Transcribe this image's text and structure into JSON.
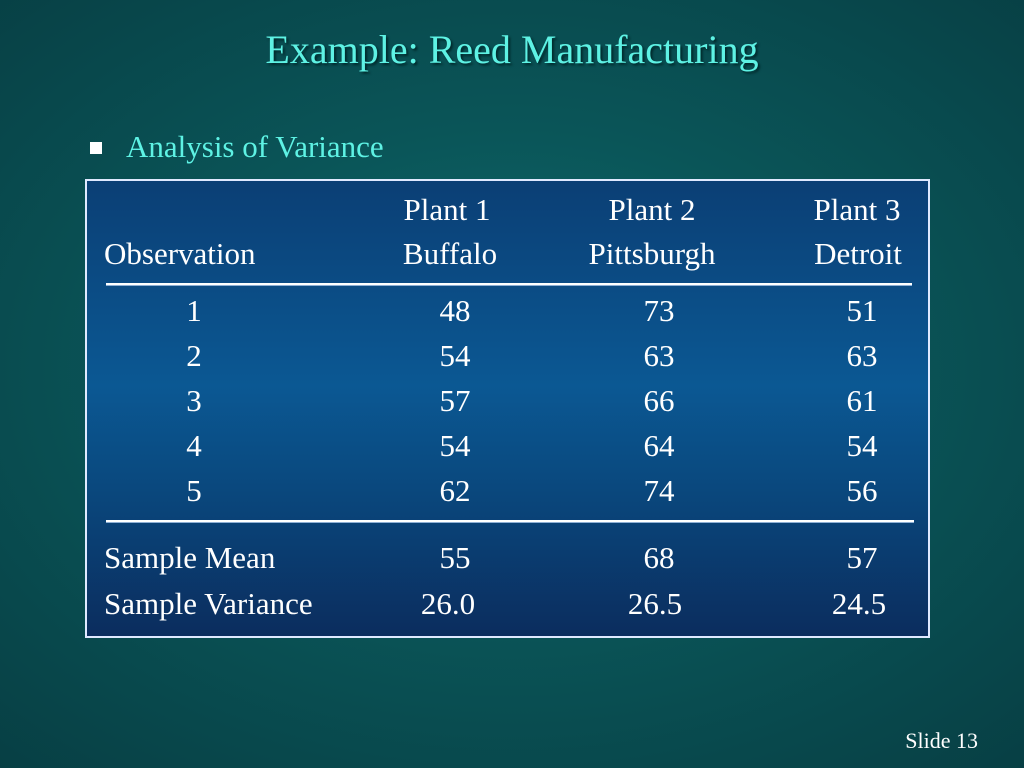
{
  "slide": {
    "title": "Example:  Reed Manufacturing",
    "bullet": "Analysis of Variance",
    "number": "Slide 13"
  },
  "table": {
    "header_row1": [
      "",
      "Plant 1",
      "Plant 2",
      "Plant 3"
    ],
    "header_row2": [
      "Observation",
      "Buffalo",
      "Pittsburgh",
      "Detroit"
    ],
    "rows": [
      [
        "1",
        "48",
        "73",
        "51"
      ],
      [
        "2",
        "54",
        "63",
        "63"
      ],
      [
        "3",
        "57",
        "66",
        "61"
      ],
      [
        "4",
        "54",
        "64",
        "54"
      ],
      [
        "5",
        "62",
        "74",
        "56"
      ]
    ],
    "summary": [
      [
        "Sample Mean",
        "55",
        "68",
        "57"
      ],
      [
        "Sample Variance",
        "26.0",
        "26.5",
        "24.5"
      ]
    ]
  }
}
